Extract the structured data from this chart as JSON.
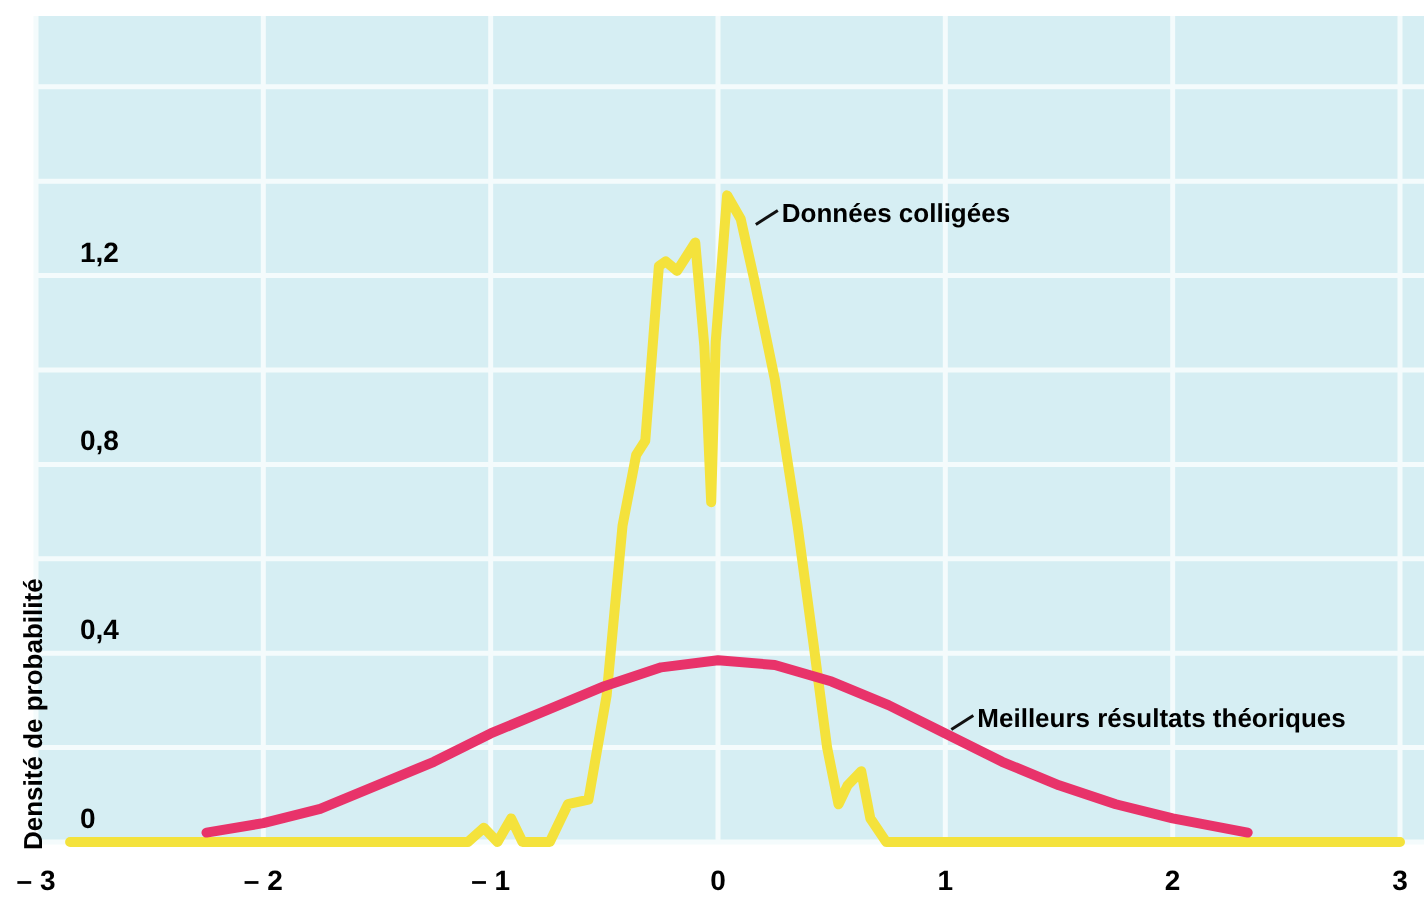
{
  "chart_data": {
    "type": "line",
    "ylabel": "Densité de probabilité",
    "xlim": [
      -3,
      3
    ],
    "ylim": [
      0,
      1.75
    ],
    "xticks": [
      {
        "value": -3,
        "label": "– 3"
      },
      {
        "value": -2,
        "label": "– 2"
      },
      {
        "value": -1,
        "label": "– 1"
      },
      0,
      1,
      2,
      3
    ],
    "yticks": [
      0,
      {
        "value": 0.2,
        "label": null
      },
      {
        "value": 0.4,
        "label": "0,4"
      },
      {
        "value": 0.6,
        "label": null
      },
      {
        "value": 0.8,
        "label": "0,8"
      },
      {
        "value": 1,
        "label": null
      },
      {
        "value": 1.2,
        "label": "1,2"
      },
      {
        "value": 1.4,
        "label": null
      },
      {
        "value": 1.6,
        "label": null
      }
    ],
    "grid": true,
    "marker": "none",
    "line_style": "solid",
    "series": [
      {
        "color": "#f4e23c",
        "x": [
          -2.85,
          -1.1,
          -1.03,
          -0.97,
          -0.91,
          -0.86,
          -0.74,
          -0.66,
          -0.57,
          -0.49,
          -0.42,
          -0.36,
          -0.32,
          -0.26,
          -0.23,
          -0.18,
          -0.1,
          -0.06,
          -0.03,
          -0.01,
          0.04,
          0.1,
          0.16,
          0.25,
          0.35,
          0.42,
          0.48,
          0.53,
          0.57,
          0.63,
          0.67,
          0.74,
          3
        ],
        "values": [
          0,
          0,
          0.03,
          0,
          0.05,
          0,
          0,
          0.08,
          0.09,
          0.31,
          0.67,
          0.82,
          0.85,
          1.22,
          1.23,
          1.21,
          1.27,
          1.05,
          0.72,
          1.06,
          1.37,
          1.32,
          1.19,
          0.98,
          0.67,
          0.42,
          0.2,
          0.08,
          0.12,
          0.15,
          0.05,
          0,
          0
        ]
      },
      {
        "color": "#e8336a",
        "x": [
          -2.25,
          -2,
          -1.75,
          -1.5,
          -1.25,
          -1,
          -0.75,
          -0.5,
          -0.25,
          0,
          0.25,
          0.5,
          0.75,
          1,
          1.25,
          1.5,
          1.75,
          2,
          2.33
        ],
        "values": [
          0.02,
          0.04,
          0.07,
          0.12,
          0.17,
          0.23,
          0.28,
          0.33,
          0.37,
          0.385,
          0.375,
          0.34,
          0.29,
          0.23,
          0.17,
          0.12,
          0.08,
          0.05,
          0.02
        ]
      }
    ],
    "annotations": [
      {
        "text": "Données colligées",
        "x": 0.14,
        "y": 1.3
      },
      {
        "text": "Meilleurs résultats théoriques",
        "x": 1,
        "y": 0.23
      }
    ]
  }
}
